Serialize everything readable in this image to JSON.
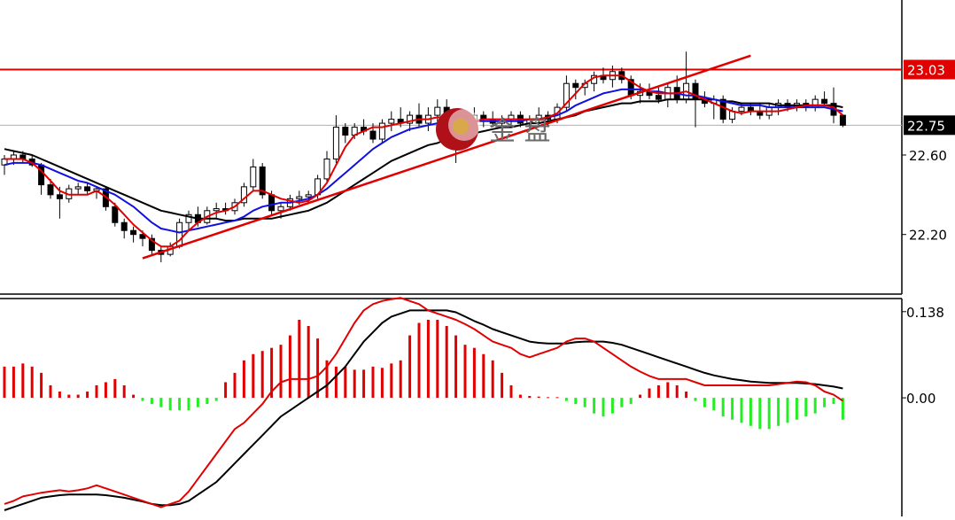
{
  "colors": {
    "background": "#ffffff",
    "axis": "#000000",
    "bull_candle": "#ffffff",
    "bear_candle": "#000000",
    "ma_fast": "#e00000",
    "ma_mid": "#1010e0",
    "ma_slow": "#000000",
    "trendline": "#e00000",
    "resistance": "#e00000",
    "current_price_line": "#b0b0b0",
    "macd_pos": "#e00000",
    "macd_neg": "#22ee22",
    "macd_dif": "#e00000",
    "macd_dea": "#000000"
  },
  "watermark": {
    "text": "金 盘",
    "logo": "jinpan-logo"
  },
  "chart_data": [
    {
      "type": "line",
      "name": "price",
      "ylim": [
        21.9,
        23.38
      ],
      "ticks": [
        "22.60",
        "22.20"
      ],
      "tick_values": [
        22.6,
        22.2
      ],
      "price_labels": {
        "resistance": {
          "value": 23.03,
          "text": "23.03"
        },
        "current": {
          "value": 22.75,
          "text": "22.75"
        }
      },
      "candles": [
        [
          22.55,
          22.6,
          22.5,
          22.58
        ],
        [
          22.58,
          22.62,
          22.55,
          22.6
        ],
        [
          22.6,
          22.62,
          22.56,
          22.58
        ],
        [
          22.58,
          22.6,
          22.54,
          22.55
        ],
        [
          22.55,
          22.56,
          22.4,
          22.45
        ],
        [
          22.45,
          22.48,
          22.38,
          22.4
        ],
        [
          22.4,
          22.44,
          22.28,
          22.38
        ],
        [
          22.38,
          22.45,
          22.36,
          22.43
        ],
        [
          22.43,
          22.46,
          22.4,
          22.44
        ],
        [
          22.44,
          22.46,
          22.4,
          22.42
        ],
        [
          22.42,
          22.44,
          22.38,
          22.43
        ],
        [
          22.43,
          22.44,
          22.32,
          22.34
        ],
        [
          22.34,
          22.36,
          22.24,
          22.26
        ],
        [
          22.26,
          22.28,
          22.18,
          22.22
        ],
        [
          22.22,
          22.24,
          22.16,
          22.2
        ],
        [
          22.2,
          22.22,
          22.14,
          22.18
        ],
        [
          22.18,
          22.2,
          22.1,
          22.12
        ],
        [
          22.12,
          22.14,
          22.06,
          22.1
        ],
        [
          22.1,
          22.16,
          22.09,
          22.14
        ],
        [
          22.14,
          22.28,
          22.13,
          22.26
        ],
        [
          22.26,
          22.32,
          22.22,
          22.3
        ],
        [
          22.3,
          22.34,
          22.24,
          22.26
        ],
        [
          22.26,
          22.34,
          22.25,
          22.32
        ],
        [
          22.32,
          22.36,
          22.28,
          22.33
        ],
        [
          22.33,
          22.36,
          22.3,
          22.32
        ],
        [
          22.32,
          22.38,
          22.3,
          22.36
        ],
        [
          22.36,
          22.46,
          22.34,
          22.44
        ],
        [
          22.44,
          22.58,
          22.42,
          22.54
        ],
        [
          22.54,
          22.56,
          22.38,
          22.4
        ],
        [
          22.4,
          22.42,
          22.3,
          22.32
        ],
        [
          22.32,
          22.36,
          22.28,
          22.34
        ],
        [
          22.34,
          22.4,
          22.32,
          22.38
        ],
        [
          22.38,
          22.42,
          22.35,
          22.39
        ],
        [
          22.39,
          22.42,
          22.36,
          22.4
        ],
        [
          22.4,
          22.5,
          22.38,
          22.48
        ],
        [
          22.48,
          22.62,
          22.46,
          22.58
        ],
        [
          22.58,
          22.8,
          22.56,
          22.74
        ],
        [
          22.74,
          22.76,
          22.66,
          22.7
        ],
        [
          22.7,
          22.76,
          22.68,
          22.74
        ],
        [
          22.74,
          22.78,
          22.7,
          22.72
        ],
        [
          22.72,
          22.76,
          22.66,
          22.68
        ],
        [
          22.68,
          22.78,
          22.66,
          22.76
        ],
        [
          22.76,
          22.82,
          22.72,
          22.78
        ],
        [
          22.78,
          22.84,
          22.74,
          22.76
        ],
        [
          22.76,
          22.82,
          22.72,
          22.8
        ],
        [
          22.8,
          22.86,
          22.74,
          22.76
        ],
        [
          22.76,
          22.84,
          22.72,
          22.8
        ],
        [
          22.8,
          22.88,
          22.76,
          22.84
        ],
        [
          22.84,
          22.88,
          22.74,
          22.76
        ],
        [
          22.76,
          22.8,
          22.56,
          22.7
        ],
        [
          22.7,
          22.78,
          22.66,
          22.76
        ],
        [
          22.76,
          22.84,
          22.72,
          22.8
        ],
        [
          22.8,
          22.82,
          22.74,
          22.78
        ],
        [
          22.78,
          22.82,
          22.74,
          22.76
        ],
        [
          22.76,
          22.8,
          22.72,
          22.78
        ],
        [
          22.78,
          22.82,
          22.75,
          22.8
        ],
        [
          22.8,
          22.82,
          22.74,
          22.76
        ],
        [
          22.76,
          22.8,
          22.72,
          22.78
        ],
        [
          22.78,
          22.84,
          22.74,
          22.8
        ],
        [
          22.8,
          22.82,
          22.74,
          22.78
        ],
        [
          22.78,
          22.86,
          22.76,
          22.84
        ],
        [
          22.84,
          23.0,
          22.82,
          22.96
        ],
        [
          22.96,
          22.98,
          22.88,
          22.94
        ],
        [
          22.94,
          22.98,
          22.9,
          22.96
        ],
        [
          22.96,
          23.02,
          22.92,
          23.0
        ],
        [
          23.0,
          23.04,
          22.96,
          22.98
        ],
        [
          22.98,
          23.05,
          22.94,
          23.02
        ],
        [
          23.02,
          23.04,
          22.96,
          22.98
        ],
        [
          22.98,
          23.0,
          22.88,
          22.9
        ],
        [
          22.9,
          22.96,
          22.86,
          22.92
        ],
        [
          22.92,
          22.96,
          22.88,
          22.9
        ],
        [
          22.9,
          22.94,
          22.86,
          22.88
        ],
        [
          22.88,
          22.96,
          22.84,
          22.94
        ],
        [
          22.94,
          23.0,
          22.86,
          22.88
        ],
        [
          22.88,
          23.12,
          22.86,
          22.96
        ],
        [
          22.96,
          22.98,
          22.74,
          22.88
        ],
        [
          22.88,
          22.92,
          22.84,
          22.86
        ],
        [
          22.86,
          22.9,
          22.78,
          22.88
        ],
        [
          22.88,
          22.9,
          22.76,
          22.78
        ],
        [
          22.78,
          22.84,
          22.76,
          22.82
        ],
        [
          22.82,
          22.86,
          22.8,
          22.84
        ],
        [
          22.84,
          22.86,
          22.8,
          22.82
        ],
        [
          22.82,
          22.86,
          22.78,
          22.8
        ],
        [
          22.8,
          22.86,
          22.78,
          22.84
        ],
        [
          22.84,
          22.88,
          22.8,
          22.86
        ],
        [
          22.86,
          22.88,
          22.82,
          22.84
        ],
        [
          22.84,
          22.88,
          22.82,
          22.86
        ],
        [
          22.86,
          22.88,
          22.82,
          22.84
        ],
        [
          22.84,
          22.9,
          22.82,
          22.88
        ],
        [
          22.88,
          22.92,
          22.84,
          22.86
        ],
        [
          22.86,
          22.94,
          22.76,
          22.8
        ],
        [
          22.8,
          22.8,
          22.74,
          22.75
        ]
      ],
      "ma_fast": [
        22.58,
        22.58,
        22.58,
        22.56,
        22.52,
        22.47,
        22.42,
        22.4,
        22.4,
        22.4,
        22.42,
        22.39,
        22.35,
        22.3,
        22.25,
        22.21,
        22.17,
        22.14,
        22.14,
        22.17,
        22.22,
        22.26,
        22.29,
        22.31,
        22.32,
        22.34,
        22.38,
        22.42,
        22.42,
        22.4,
        22.38,
        22.37,
        22.36,
        22.37,
        22.4,
        22.46,
        22.55,
        22.64,
        22.7,
        22.72,
        22.74,
        22.74,
        22.75,
        22.76,
        22.77,
        22.78,
        22.78,
        22.79,
        22.79,
        22.77,
        22.77,
        22.77,
        22.78,
        22.78,
        22.78,
        22.78,
        22.78,
        22.78,
        22.78,
        22.79,
        22.81,
        22.86,
        22.91,
        22.96,
        22.99,
        23.0,
        23.0,
        23.0,
        22.97,
        22.94,
        22.92,
        22.91,
        22.91,
        22.91,
        22.92,
        22.9,
        22.88,
        22.86,
        22.84,
        22.82,
        22.81,
        22.82,
        22.82,
        22.82,
        22.82,
        22.83,
        22.84,
        22.85,
        22.85,
        22.85,
        22.84,
        22.8
      ],
      "ma_mid": [
        22.55,
        22.56,
        22.56,
        22.56,
        22.55,
        22.53,
        22.51,
        22.49,
        22.47,
        22.46,
        22.44,
        22.42,
        22.4,
        22.37,
        22.34,
        22.3,
        22.26,
        22.23,
        22.22,
        22.21,
        22.22,
        22.23,
        22.24,
        22.25,
        22.26,
        22.27,
        22.29,
        22.32,
        22.34,
        22.35,
        22.36,
        22.36,
        22.37,
        22.38,
        22.4,
        22.43,
        22.47,
        22.51,
        22.55,
        22.59,
        22.63,
        22.66,
        22.69,
        22.71,
        22.73,
        22.74,
        22.75,
        22.76,
        22.76,
        22.76,
        22.76,
        22.77,
        22.77,
        22.77,
        22.77,
        22.77,
        22.77,
        22.78,
        22.78,
        22.79,
        22.8,
        22.82,
        22.85,
        22.87,
        22.89,
        22.91,
        22.92,
        22.93,
        22.93,
        22.93,
        22.92,
        22.92,
        22.91,
        22.91,
        22.9,
        22.9,
        22.89,
        22.88,
        22.87,
        22.86,
        22.85,
        22.85,
        22.85,
        22.84,
        22.84,
        22.84,
        22.84,
        22.84,
        22.84,
        22.84,
        22.83,
        22.82
      ],
      "ma_slow": [
        22.63,
        22.62,
        22.61,
        22.6,
        22.58,
        22.56,
        22.54,
        22.52,
        22.5,
        22.48,
        22.46,
        22.44,
        22.42,
        22.4,
        22.38,
        22.36,
        22.34,
        22.32,
        22.31,
        22.3,
        22.29,
        22.28,
        22.28,
        22.28,
        22.27,
        22.27,
        22.28,
        22.28,
        22.28,
        22.28,
        22.29,
        22.3,
        22.31,
        22.32,
        22.34,
        22.36,
        22.39,
        22.42,
        22.45,
        22.48,
        22.51,
        22.54,
        22.57,
        22.59,
        22.61,
        22.63,
        22.65,
        22.66,
        22.68,
        22.69,
        22.7,
        22.71,
        22.72,
        22.73,
        22.74,
        22.74,
        22.75,
        22.76,
        22.76,
        22.77,
        22.78,
        22.79,
        22.8,
        22.82,
        22.83,
        22.84,
        22.85,
        22.86,
        22.86,
        22.87,
        22.87,
        22.87,
        22.88,
        22.88,
        22.88,
        22.88,
        22.88,
        22.88,
        22.87,
        22.87,
        22.86,
        22.86,
        22.86,
        22.86,
        22.85,
        22.85,
        22.85,
        22.85,
        22.85,
        22.85,
        22.85,
        22.84
      ],
      "trendline": {
        "from": [
          15,
          22.08
        ],
        "to": [
          81,
          23.1
        ]
      },
      "resistance": 23.03
    },
    {
      "type": "bar",
      "name": "MACD",
      "ylim": [
        -0.19,
        0.159
      ],
      "ticks": [
        "0.138",
        "0.00"
      ],
      "tick_values": [
        0.138,
        0.0
      ],
      "histogram": [
        0.05,
        0.05,
        0.055,
        0.05,
        0.04,
        0.02,
        0.01,
        0.005,
        0.005,
        0.01,
        0.02,
        0.025,
        0.03,
        0.02,
        0.005,
        -0.005,
        -0.01,
        -0.015,
        -0.02,
        -0.02,
        -0.02,
        -0.015,
        -0.01,
        -0.005,
        0.025,
        0.04,
        0.06,
        0.07,
        0.075,
        0.08,
        0.085,
        0.1,
        0.125,
        0.115,
        0.095,
        0.06,
        0.05,
        0.05,
        0.045,
        0.045,
        0.05,
        0.048,
        0.055,
        0.06,
        0.1,
        0.12,
        0.125,
        0.125,
        0.115,
        0.1,
        0.085,
        0.08,
        0.07,
        0.06,
        0.04,
        0.02,
        0.005,
        0.003,
        0.002,
        0.001,
        0.001,
        -0.005,
        -0.01,
        -0.015,
        -0.025,
        -0.03,
        -0.025,
        -0.015,
        -0.01,
        0.005,
        0.015,
        0.02,
        0.025,
        0.02,
        0.01,
        -0.005,
        -0.015,
        -0.02,
        -0.03,
        -0.035,
        -0.04,
        -0.045,
        -0.05,
        -0.05,
        -0.045,
        -0.04,
        -0.035,
        -0.03,
        -0.025,
        -0.015,
        -0.01,
        -0.035
      ],
      "dif": [
        -0.17,
        -0.165,
        -0.158,
        -0.155,
        -0.152,
        -0.15,
        -0.148,
        -0.15,
        -0.148,
        -0.145,
        -0.14,
        -0.145,
        -0.15,
        -0.155,
        -0.16,
        -0.165,
        -0.17,
        -0.175,
        -0.17,
        -0.165,
        -0.15,
        -0.13,
        -0.11,
        -0.09,
        -0.07,
        -0.05,
        -0.04,
        -0.025,
        -0.01,
        0.01,
        0.025,
        0.03,
        0.03,
        0.03,
        0.035,
        0.05,
        0.07,
        0.095,
        0.12,
        0.14,
        0.15,
        0.155,
        0.158,
        0.16,
        0.155,
        0.15,
        0.14,
        0.135,
        0.13,
        0.125,
        0.118,
        0.11,
        0.1,
        0.09,
        0.085,
        0.08,
        0.07,
        0.065,
        0.07,
        0.075,
        0.08,
        0.09,
        0.095,
        0.095,
        0.09,
        0.08,
        0.07,
        0.06,
        0.05,
        0.042,
        0.035,
        0.03,
        0.03,
        0.03,
        0.03,
        0.025,
        0.02,
        0.02,
        0.02,
        0.02,
        0.02,
        0.02,
        0.02,
        0.02,
        0.022,
        0.024,
        0.026,
        0.025,
        0.02,
        0.01,
        0.005,
        -0.005
      ],
      "dea": [
        -0.18,
        -0.175,
        -0.17,
        -0.165,
        -0.16,
        -0.158,
        -0.156,
        -0.155,
        -0.155,
        -0.155,
        -0.155,
        -0.156,
        -0.158,
        -0.16,
        -0.163,
        -0.166,
        -0.17,
        -0.172,
        -0.172,
        -0.17,
        -0.165,
        -0.155,
        -0.145,
        -0.135,
        -0.12,
        -0.105,
        -0.09,
        -0.075,
        -0.06,
        -0.045,
        -0.03,
        -0.02,
        -0.01,
        0.0,
        0.01,
        0.02,
        0.035,
        0.05,
        0.07,
        0.09,
        0.105,
        0.12,
        0.13,
        0.135,
        0.14,
        0.14,
        0.14,
        0.14,
        0.14,
        0.137,
        0.13,
        0.123,
        0.117,
        0.11,
        0.105,
        0.1,
        0.095,
        0.09,
        0.088,
        0.087,
        0.087,
        0.087,
        0.089,
        0.09,
        0.09,
        0.09,
        0.088,
        0.085,
        0.08,
        0.075,
        0.07,
        0.065,
        0.06,
        0.055,
        0.05,
        0.045,
        0.04,
        0.036,
        0.033,
        0.03,
        0.028,
        0.026,
        0.025,
        0.024,
        0.024,
        0.024,
        0.024,
        0.023,
        0.022,
        0.02,
        0.018,
        0.015
      ]
    }
  ]
}
